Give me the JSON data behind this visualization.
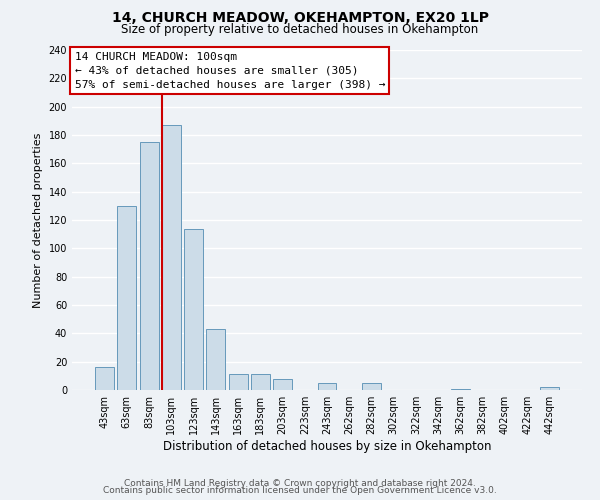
{
  "title": "14, CHURCH MEADOW, OKEHAMPTON, EX20 1LP",
  "subtitle": "Size of property relative to detached houses in Okehampton",
  "xlabel": "Distribution of detached houses by size in Okehampton",
  "ylabel": "Number of detached properties",
  "footer_line1": "Contains HM Land Registry data © Crown copyright and database right 2024.",
  "footer_line2": "Contains public sector information licensed under the Open Government Licence v3.0.",
  "bar_labels": [
    "43sqm",
    "63sqm",
    "83sqm",
    "103sqm",
    "123sqm",
    "143sqm",
    "163sqm",
    "183sqm",
    "203sqm",
    "223sqm",
    "243sqm",
    "262sqm",
    "282sqm",
    "302sqm",
    "322sqm",
    "342sqm",
    "362sqm",
    "382sqm",
    "402sqm",
    "422sqm",
    "442sqm"
  ],
  "bar_values": [
    16,
    130,
    175,
    187,
    114,
    43,
    11,
    11,
    8,
    0,
    5,
    0,
    5,
    0,
    0,
    0,
    1,
    0,
    0,
    0,
    2
  ],
  "bar_color": "#ccdce8",
  "bar_edge_color": "#6699bb",
  "ylim": [
    0,
    240
  ],
  "yticks": [
    0,
    20,
    40,
    60,
    80,
    100,
    120,
    140,
    160,
    180,
    200,
    220,
    240
  ],
  "property_line_index": 3,
  "annotation_title": "14 CHURCH MEADOW: 100sqm",
  "annotation_line1": "← 43% of detached houses are smaller (305)",
  "annotation_line2": "57% of semi-detached houses are larger (398) →",
  "annotation_box_color": "#ffffff",
  "annotation_box_edge": "#cc0000",
  "property_line_color": "#cc0000",
  "background_color": "#eef2f6",
  "grid_color": "#ffffff",
  "title_fontsize": 10,
  "subtitle_fontsize": 8.5,
  "ylabel_fontsize": 8,
  "xlabel_fontsize": 8.5,
  "annotation_fontsize": 8,
  "tick_fontsize": 7,
  "footer_fontsize": 6.5
}
